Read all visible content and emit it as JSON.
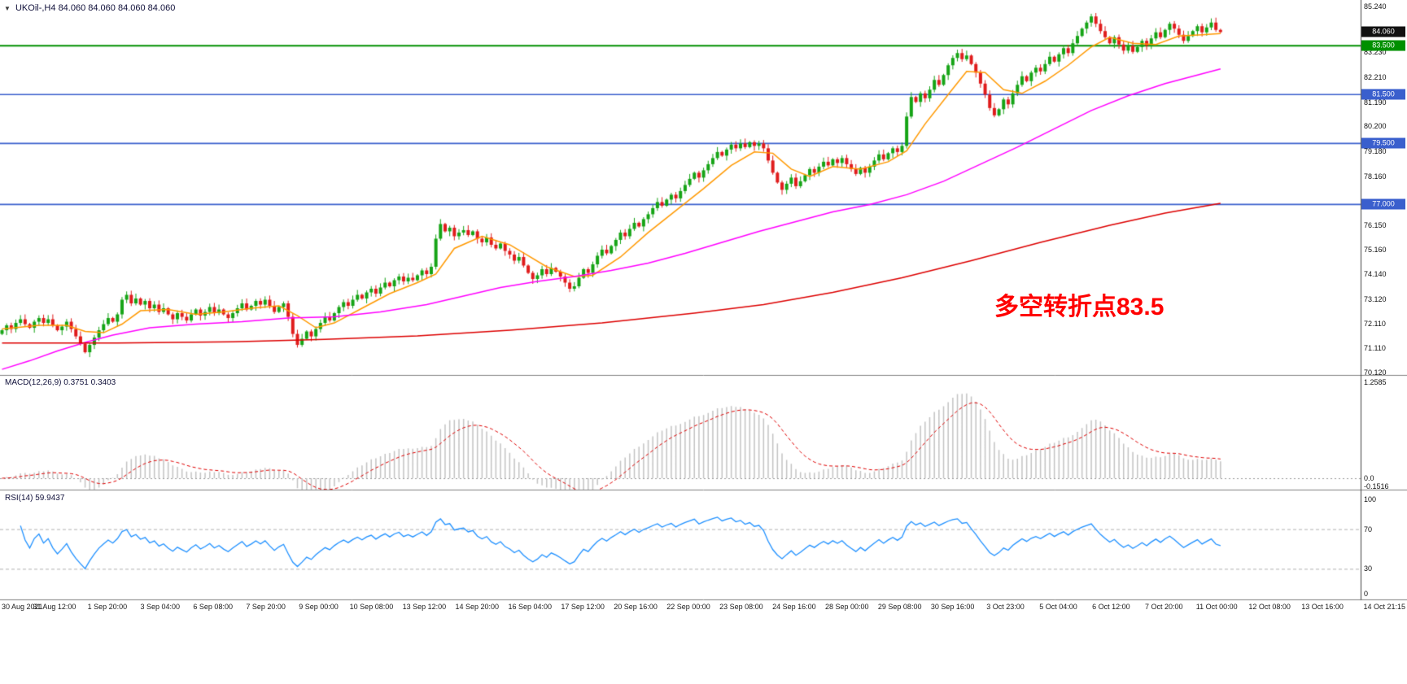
{
  "header": {
    "dropdown_icon": "▼",
    "symbol_timeframe": "UKOil-,H4",
    "ohlc": "84.060 84.060 84.060 84.060"
  },
  "annotation": {
    "text": "多空转折点83.5",
    "color": "#FF0000"
  },
  "macd": {
    "label": "MACD(12,26,9)",
    "value_main": "0.3751",
    "value_signal": "0.3403",
    "axis_labels": [
      {
        "text": "1.2585",
        "value": 1.2585
      },
      {
        "text": "0.0",
        "value": 0.0
      },
      {
        "text": "-0.1516",
        "value": -0.1516
      }
    ]
  },
  "rsi": {
    "label": "RSI(14)",
    "value": "59.9437",
    "axis_labels": [
      {
        "text": "100",
        "value": 100
      },
      {
        "text": "70",
        "value": 70
      },
      {
        "text": "30",
        "value": 30
      },
      {
        "text": "0",
        "value": 0
      }
    ],
    "levels": [
      70,
      30
    ]
  },
  "price_axis": {
    "labels": [
      {
        "text": "85.240",
        "value": 85.24
      },
      {
        "text": "83.230",
        "value": 83.23
      },
      {
        "text": "82.210",
        "value": 82.21
      },
      {
        "text": "81.190",
        "value": 81.19
      },
      {
        "text": "80.200",
        "value": 80.2
      },
      {
        "text": "79.180",
        "value": 79.18
      },
      {
        "text": "78.160",
        "value": 78.16
      },
      {
        "text": "76.150",
        "value": 76.15
      },
      {
        "text": "75.160",
        "value": 75.16
      },
      {
        "text": "74.140",
        "value": 74.14
      },
      {
        "text": "73.120",
        "value": 73.12
      },
      {
        "text": "72.110",
        "value": 72.11
      },
      {
        "text": "71.110",
        "value": 71.11
      },
      {
        "text": "70.120",
        "value": 70.12
      }
    ],
    "tags": [
      {
        "text": "84.060",
        "value": 84.06,
        "bg": "#111111",
        "name": "current-price-tag"
      },
      {
        "text": "83.500",
        "value": 83.5,
        "bg": "#009000",
        "name": "green-level-tag"
      },
      {
        "text": "81.500",
        "value": 81.5,
        "bg": "#3A5FCD",
        "name": "blue-level-tag"
      },
      {
        "text": "79.500",
        "value": 79.5,
        "bg": "#3A5FCD",
        "name": "blue-level-tag"
      },
      {
        "text": "77.000",
        "value": 77.0,
        "bg": "#3A5FCD",
        "name": "blue-level-tag"
      }
    ]
  },
  "colors": {
    "bull": "#16A416",
    "bear": "#E01C1C",
    "ma_fast": "#FF9900",
    "ma_mid": "#FF00FF",
    "ma_slow": "#DD0000",
    "macd_hist": "#C3C3C3",
    "macd_signal": "#E00000",
    "rsi_line": "#1E90FF",
    "level_green": "#009000",
    "level_blue": "#3A5FCD",
    "separator": "#808080"
  },
  "chart_data": {
    "type": "candlestick",
    "symbol": "UKOil-",
    "timeframe": "H4",
    "current_ohlc": [
      84.06,
      84.06,
      84.06,
      84.06
    ],
    "y_range": [
      70.12,
      85.24
    ],
    "first_open": 71.7,
    "closes": [
      71.85,
      72.05,
      71.9,
      72.15,
      72.3,
      72.1,
      71.95,
      72.2,
      72.35,
      72.15,
      72.3,
      72.05,
      71.85,
      72.0,
      72.2,
      71.9,
      71.6,
      71.3,
      70.95,
      71.25,
      71.55,
      71.85,
      72.1,
      72.35,
      72.2,
      72.5,
      73.1,
      73.3,
      72.95,
      73.15,
      72.9,
      73.05,
      72.75,
      72.9,
      72.6,
      72.75,
      72.5,
      72.3,
      72.55,
      72.4,
      72.25,
      72.5,
      72.7,
      72.45,
      72.6,
      72.8,
      72.55,
      72.7,
      72.5,
      72.35,
      72.55,
      72.75,
      72.95,
      72.7,
      72.85,
      73.05,
      72.9,
      73.1,
      72.85,
      72.6,
      72.8,
      72.95,
      72.4,
      71.7,
      71.25,
      71.5,
      71.8,
      71.6,
      71.9,
      72.15,
      72.4,
      72.25,
      72.55,
      72.8,
      73.0,
      72.85,
      73.1,
      73.3,
      73.15,
      73.4,
      73.55,
      73.35,
      73.6,
      73.8,
      73.65,
      73.9,
      74.05,
      73.85,
      74.0,
      73.9,
      74.1,
      74.3,
      74.15,
      74.45,
      75.6,
      76.2,
      75.9,
      76.05,
      75.7,
      75.85,
      75.95,
      75.75,
      75.9,
      75.6,
      75.45,
      75.65,
      75.35,
      75.2,
      75.4,
      75.1,
      74.95,
      74.7,
      74.85,
      74.5,
      74.2,
      73.95,
      74.1,
      74.35,
      74.15,
      74.4,
      74.25,
      74.05,
      73.8,
      73.55,
      73.65,
      74.0,
      74.35,
      74.2,
      74.55,
      74.9,
      75.15,
      75.0,
      75.3,
      75.55,
      75.85,
      75.7,
      76.0,
      76.25,
      76.1,
      76.4,
      76.6,
      76.85,
      77.1,
      76.95,
      77.2,
      77.4,
      77.25,
      77.55,
      77.8,
      78.05,
      78.3,
      78.1,
      78.4,
      78.65,
      78.9,
      79.15,
      79.0,
      79.25,
      79.45,
      79.3,
      79.5,
      79.35,
      79.55,
      79.4,
      79.5,
      79.3,
      78.8,
      78.3,
      77.9,
      77.6,
      77.85,
      78.1,
      77.75,
      77.95,
      78.2,
      78.45,
      78.3,
      78.55,
      78.75,
      78.6,
      78.85,
      78.7,
      78.9,
      78.65,
      78.45,
      78.25,
      78.5,
      78.3,
      78.55,
      78.8,
      79.05,
      78.85,
      79.1,
      79.3,
      79.15,
      79.4,
      80.6,
      81.4,
      81.2,
      81.55,
      81.35,
      81.7,
      82.1,
      81.9,
      82.3,
      82.7,
      83.0,
      83.2,
      82.95,
      83.1,
      82.75,
      82.4,
      81.95,
      81.5,
      80.95,
      80.65,
      80.9,
      81.3,
      81.1,
      81.55,
      81.9,
      82.25,
      82.05,
      82.4,
      82.6,
      82.45,
      82.75,
      83.05,
      82.85,
      83.15,
      83.4,
      83.2,
      83.6,
      83.9,
      84.2,
      84.45,
      84.7,
      84.4,
      84.1,
      83.85,
      83.6,
      83.85,
      83.55,
      83.3,
      83.5,
      83.25,
      83.45,
      83.7,
      83.5,
      83.8,
      84.05,
      83.85,
      84.15,
      84.4,
      84.2,
      83.95,
      83.7,
      83.9,
      84.1,
      84.3,
      84.05,
      84.25,
      84.45,
      84.15,
      84.06
    ],
    "horizontal_lines": [
      {
        "price": 83.5,
        "color": "#009000",
        "width": 2
      },
      {
        "price": 81.5,
        "color": "#3A5FCD",
        "width": 1.6
      },
      {
        "price": 79.5,
        "color": "#3A5FCD",
        "width": 1.6
      },
      {
        "price": 77.0,
        "color": "#3A5FCD",
        "width": 1.6
      }
    ],
    "moving_averages": [
      {
        "name": "ma-fast-orange",
        "color": "#FF9900",
        "anchors": [
          [
            0,
            71.9
          ],
          [
            8,
            72.05
          ],
          [
            14,
            72.05
          ],
          [
            18,
            71.8
          ],
          [
            22,
            71.75
          ],
          [
            26,
            72.1
          ],
          [
            30,
            72.65
          ],
          [
            36,
            72.7
          ],
          [
            42,
            72.5
          ],
          [
            48,
            72.6
          ],
          [
            54,
            72.75
          ],
          [
            60,
            72.85
          ],
          [
            64,
            72.45
          ],
          [
            68,
            71.95
          ],
          [
            72,
            72.15
          ],
          [
            78,
            72.75
          ],
          [
            84,
            73.35
          ],
          [
            90,
            73.8
          ],
          [
            94,
            74.15
          ],
          [
            98,
            75.2
          ],
          [
            104,
            75.7
          ],
          [
            110,
            75.35
          ],
          [
            114,
            74.9
          ],
          [
            118,
            74.45
          ],
          [
            124,
            74.05
          ],
          [
            128,
            74.1
          ],
          [
            134,
            74.85
          ],
          [
            140,
            75.85
          ],
          [
            146,
            76.75
          ],
          [
            152,
            77.65
          ],
          [
            158,
            78.6
          ],
          [
            163,
            79.15
          ],
          [
            167,
            79.1
          ],
          [
            171,
            78.45
          ],
          [
            175,
            78.15
          ],
          [
            180,
            78.55
          ],
          [
            186,
            78.45
          ],
          [
            192,
            78.75
          ],
          [
            196,
            79.2
          ],
          [
            200,
            80.3
          ],
          [
            205,
            81.5
          ],
          [
            209,
            82.45
          ],
          [
            213,
            82.4
          ],
          [
            217,
            81.7
          ],
          [
            221,
            81.55
          ],
          [
            226,
            82.05
          ],
          [
            231,
            82.7
          ],
          [
            236,
            83.45
          ],
          [
            240,
            83.85
          ],
          [
            245,
            83.6
          ],
          [
            250,
            83.55
          ],
          [
            255,
            83.9
          ],
          [
            260,
            83.95
          ],
          [
            264,
            84.0
          ]
        ]
      },
      {
        "name": "ma-mid-magenta",
        "color": "#FF00FF",
        "anchors": [
          [
            0,
            70.25
          ],
          [
            6,
            70.6
          ],
          [
            12,
            71.0
          ],
          [
            18,
            71.35
          ],
          [
            24,
            71.65
          ],
          [
            32,
            71.95
          ],
          [
            42,
            72.1
          ],
          [
            52,
            72.2
          ],
          [
            62,
            72.35
          ],
          [
            72,
            72.4
          ],
          [
            82,
            72.6
          ],
          [
            92,
            72.9
          ],
          [
            100,
            73.25
          ],
          [
            108,
            73.6
          ],
          [
            116,
            73.85
          ],
          [
            124,
            74.05
          ],
          [
            132,
            74.3
          ],
          [
            140,
            74.6
          ],
          [
            148,
            75.0
          ],
          [
            156,
            75.45
          ],
          [
            164,
            75.9
          ],
          [
            172,
            76.3
          ],
          [
            180,
            76.7
          ],
          [
            188,
            77.0
          ],
          [
            196,
            77.4
          ],
          [
            204,
            77.95
          ],
          [
            212,
            78.65
          ],
          [
            220,
            79.35
          ],
          [
            228,
            80.1
          ],
          [
            236,
            80.85
          ],
          [
            244,
            81.45
          ],
          [
            252,
            81.95
          ],
          [
            258,
            82.25
          ],
          [
            264,
            82.55
          ]
        ]
      },
      {
        "name": "ma-slow-red",
        "color": "#DD0000",
        "anchors": [
          [
            0,
            71.33
          ],
          [
            25,
            71.33
          ],
          [
            50,
            71.38
          ],
          [
            70,
            71.48
          ],
          [
            90,
            71.62
          ],
          [
            110,
            71.85
          ],
          [
            130,
            72.15
          ],
          [
            150,
            72.55
          ],
          [
            165,
            72.9
          ],
          [
            180,
            73.4
          ],
          [
            195,
            74.0
          ],
          [
            210,
            74.7
          ],
          [
            225,
            75.45
          ],
          [
            240,
            76.15
          ],
          [
            252,
            76.65
          ],
          [
            264,
            77.05
          ]
        ]
      }
    ],
    "indicators": {
      "macd": {
        "params": [
          12,
          26,
          9
        ],
        "main": 0.3751,
        "signal": 0.3403,
        "axis_max": 1.2585,
        "axis_min": -0.1516
      },
      "rsi": {
        "period": 14,
        "value": 59.9437,
        "levels": [
          70,
          30
        ],
        "range": [
          0,
          100
        ]
      }
    },
    "x_labels": [
      "30 Aug 2021",
      "31 Aug 12:00",
      "1 Sep 20:00",
      "3 Sep 04:00",
      "6 Sep 08:00",
      "7 Sep 20:00",
      "9 Sep 00:00",
      "10 Sep 08:00",
      "13 Sep 12:00",
      "14 Sep 20:00",
      "16 Sep 04:00",
      "17 Sep 12:00",
      "20 Sep 16:00",
      "22 Sep 00:00",
      "23 Sep 08:00",
      "24 Sep 16:00",
      "28 Sep 00:00",
      "29 Sep 08:00",
      "30 Sep 16:00",
      "3 Oct 23:00",
      "5 Oct 04:00",
      "6 Oct 12:00",
      "7 Oct 20:00",
      "11 Oct 00:00",
      "12 Oct 08:00",
      "13 Oct 16:00",
      "14 Oct 21:15"
    ]
  }
}
